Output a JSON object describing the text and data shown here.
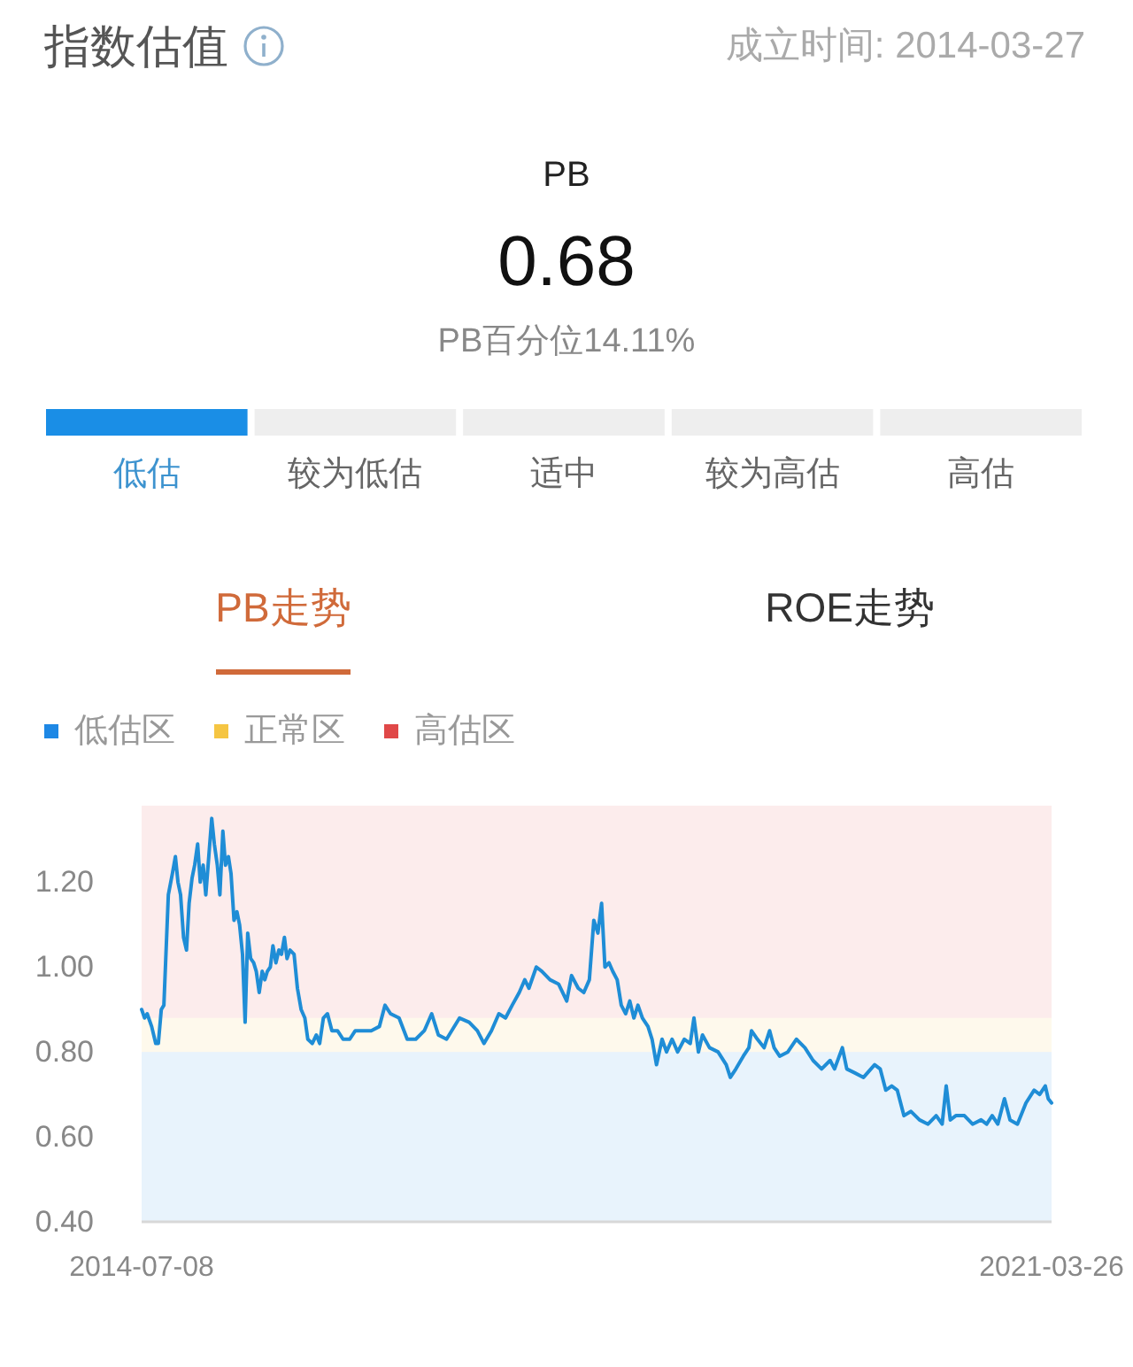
{
  "chart_data": [
    {
      "type": "other",
      "title": "指数估值",
      "subtitle": "成立时间: 2014-03-27",
      "annotations": [
        "PB",
        "0.68",
        "PB百分位14.11%"
      ],
      "categories": [
        "低估",
        "较为低估",
        "适中",
        "较为高估",
        "高估"
      ],
      "colors": [
        "#1a8ee6",
        "#eeeeee",
        "#eeeeee",
        "#eeeeee",
        "#eeeeee"
      ]
    },
    {
      "type": "line",
      "title": "PB走势",
      "annotations": [
        "ROE走势"
      ],
      "x": [
        "2014-07-08",
        "2014-07-16",
        "2014-07-23",
        "2014-08-04",
        "2014-08-15",
        "2014-08-22",
        "2014-08-30",
        "2014-09-06",
        "2014-09-18",
        "2014-09-29",
        "2014-10-07",
        "2014-10-14",
        "2014-10-21",
        "2014-10-29",
        "2014-11-06",
        "2014-11-13",
        "2014-11-21",
        "2014-11-28",
        "2014-12-06",
        "2014-12-13",
        "2014-12-21",
        "2014-12-28",
        "2015-01-05",
        "2015-01-13",
        "2015-01-20",
        "2015-01-28",
        "2015-02-04",
        "2015-02-12",
        "2015-02-19",
        "2015-02-27",
        "2015-03-06",
        "2015-03-14",
        "2015-03-22",
        "2015-03-29",
        "2015-04-06",
        "2015-04-13",
        "2015-04-20",
        "2015-04-28",
        "2015-05-06",
        "2015-05-13",
        "2015-05-21",
        "2015-05-29",
        "2015-06-05",
        "2015-06-12",
        "2015-06-20",
        "2015-06-27",
        "2015-07-05",
        "2015-07-13",
        "2015-07-20",
        "2015-07-28",
        "2015-08-04",
        "2015-08-12",
        "2015-08-23",
        "2015-09-01",
        "2015-09-11",
        "2015-09-21",
        "2015-09-29",
        "2015-10-11",
        "2015-10-22",
        "2015-10-31",
        "2015-11-10",
        "2015-11-21",
        "2015-12-03",
        "2015-12-18",
        "2016-01-02",
        "2016-01-20",
        "2016-02-04",
        "2016-02-24",
        "2016-03-18",
        "2016-04-09",
        "2016-04-24",
        "2016-05-09",
        "2016-06-01",
        "2016-06-23",
        "2016-07-16",
        "2016-08-08",
        "2016-08-28",
        "2016-09-15",
        "2016-10-07",
        "2016-11-11",
        "2016-12-07",
        "2016-12-29",
        "2017-01-16",
        "2017-02-05",
        "2017-02-25",
        "2017-03-15",
        "2017-04-02",
        "2017-04-21",
        "2017-05-06",
        "2017-05-17",
        "2017-06-06",
        "2017-06-21",
        "2017-07-13",
        "2017-08-05",
        "2017-08-27",
        "2017-09-09",
        "2017-09-27",
        "2017-10-12",
        "2017-10-27",
        "2017-11-08",
        "2017-11-19",
        "2017-11-29",
        "2017-12-08",
        "2017-12-19",
        "2017-12-29",
        "2018-01-10",
        "2018-01-21",
        "2018-02-02",
        "2018-02-13",
        "2018-02-24",
        "2018-03-07",
        "2018-03-19",
        "2018-04-03",
        "2018-04-14",
        "2018-04-26",
        "2018-05-11",
        "2018-05-23",
        "2018-06-07",
        "2018-06-22",
        "2018-07-10",
        "2018-07-26",
        "2018-08-05",
        "2018-08-17",
        "2018-08-28",
        "2018-09-16",
        "2018-10-09",
        "2018-10-31",
        "2018-11-11",
        "2018-11-26",
        "2018-12-16",
        "2018-12-31",
        "2019-01-07",
        "2019-01-23",
        "2019-02-10",
        "2019-02-25",
        "2019-03-09",
        "2019-03-24",
        "2019-04-15",
        "2019-05-08",
        "2019-05-31",
        "2019-06-22",
        "2019-07-15",
        "2019-08-07",
        "2019-08-19",
        "2019-09-09",
        "2019-09-21",
        "2019-10-14",
        "2019-11-05",
        "2019-12-05",
        "2019-12-20",
        "2020-01-04",
        "2020-01-20",
        "2020-02-04",
        "2020-02-22",
        "2020-03-12",
        "2020-04-04",
        "2020-04-27",
        "2020-05-19",
        "2020-06-04",
        "2020-06-15",
        "2020-06-26",
        "2020-07-11",
        "2020-08-03",
        "2020-08-25",
        "2020-09-17",
        "2020-10-02",
        "2020-10-17",
        "2020-11-01",
        "2020-11-19",
        "2020-12-04",
        "2020-12-24",
        "2021-01-16",
        "2021-02-07",
        "2021-02-22",
        "2021-03-09",
        "2021-03-17",
        "2021-03-26"
      ],
      "series": [
        {
          "color": "#1f8dd6",
          "values": [
            0.9,
            0.88,
            0.89,
            0.86,
            0.82,
            0.82,
            0.9,
            0.91,
            1.17,
            1.22,
            1.26,
            1.2,
            1.17,
            1.07,
            1.04,
            1.15,
            1.21,
            1.24,
            1.29,
            1.2,
            1.24,
            1.17,
            1.26,
            1.35,
            1.29,
            1.24,
            1.17,
            1.32,
            1.24,
            1.26,
            1.22,
            1.11,
            1.13,
            1.1,
            1.03,
            0.87,
            1.08,
            1.02,
            1.01,
            0.99,
            0.94,
            0.99,
            0.97,
            0.99,
            1.0,
            1.05,
            1.01,
            1.04,
            1.03,
            1.07,
            1.02,
            1.04,
            1.03,
            0.95,
            0.9,
            0.88,
            0.83,
            0.82,
            0.84,
            0.82,
            0.88,
            0.89,
            0.85,
            0.85,
            0.83,
            0.83,
            0.85,
            0.85,
            0.85,
            0.86,
            0.91,
            0.89,
            0.88,
            0.83,
            0.83,
            0.85,
            0.89,
            0.84,
            0.83,
            0.88,
            0.87,
            0.85,
            0.82,
            0.85,
            0.89,
            0.88,
            0.91,
            0.94,
            0.97,
            0.95,
            1.0,
            0.99,
            0.97,
            0.96,
            0.92,
            0.98,
            0.95,
            0.94,
            0.97,
            1.11,
            1.08,
            1.15,
            1.0,
            1.01,
            0.99,
            0.97,
            0.91,
            0.89,
            0.92,
            0.88,
            0.91,
            0.88,
            0.86,
            0.83,
            0.77,
            0.83,
            0.8,
            0.83,
            0.8,
            0.83,
            0.82,
            0.88,
            0.8,
            0.84,
            0.81,
            0.8,
            0.77,
            0.74,
            0.76,
            0.79,
            0.81,
            0.85,
            0.83,
            0.81,
            0.85,
            0.81,
            0.79,
            0.8,
            0.83,
            0.81,
            0.78,
            0.76,
            0.78,
            0.76,
            0.81,
            0.76,
            0.75,
            0.74,
            0.77,
            0.76,
            0.71,
            0.72,
            0.71,
            0.65,
            0.66,
            0.64,
            0.63,
            0.65,
            0.63,
            0.72,
            0.64,
            0.65,
            0.65,
            0.63,
            0.64,
            0.63,
            0.65,
            0.63,
            0.69,
            0.64,
            0.63,
            0.68,
            0.71,
            0.7,
            0.72,
            0.69,
            0.68
          ]
        }
      ],
      "xlim": [
        "2014-07-08",
        "2021-03-26"
      ],
      "xticks": [
        "2014-07-08",
        "2021-03-26"
      ],
      "ylim": [
        0.4,
        1.38
      ],
      "yticks": [
        {
          "value": 0.4,
          "label": "0.40"
        },
        {
          "value": 0.6,
          "label": "0.60"
        },
        {
          "value": 0.8,
          "label": "0.80"
        },
        {
          "value": 1.0,
          "label": "1.00"
        },
        {
          "value": 1.2,
          "label": "1.20"
        }
      ],
      "bands": [
        {
          "axis": "y",
          "from": 0.4,
          "to": 0.8,
          "label": "低估区",
          "color": "#1e88e5"
        },
        {
          "axis": "y",
          "from": 0.8,
          "to": 0.88,
          "label": "正常区",
          "color": "#f5c542"
        },
        {
          "axis": "y",
          "from": 0.88,
          "to": 1.38,
          "label": "高估区",
          "color": "#e04848"
        }
      ],
      "legend": "top left"
    }
  ]
}
